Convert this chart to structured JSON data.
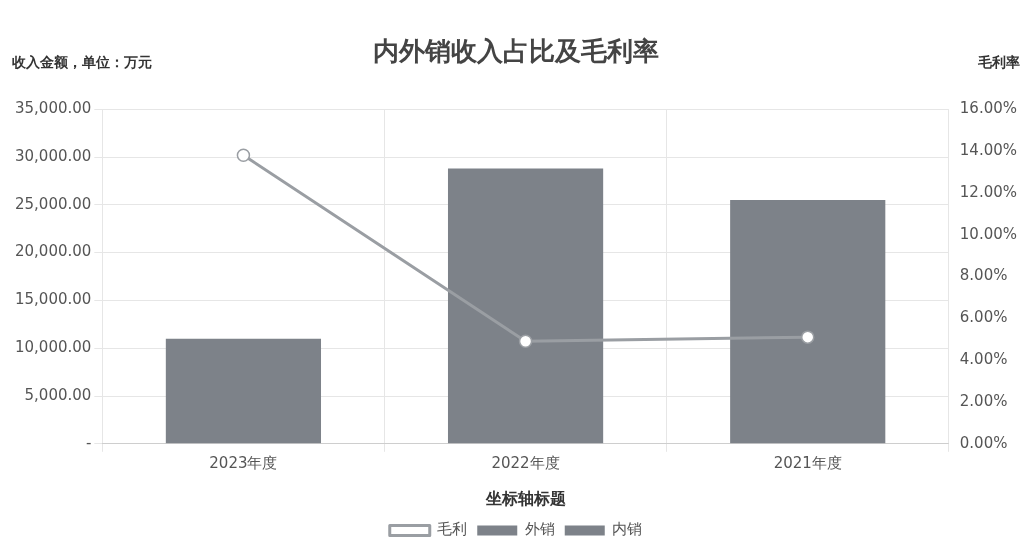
{
  "chart_data": {
    "type": "bar",
    "title": "内外销收入占比及毛利率",
    "ylabel": "收入金额，单位：万元",
    "y2label": "毛利率",
    "xlabel": "坐标轴标题",
    "categories": [
      "2023年度",
      "2022年度",
      "2021年度"
    ],
    "stacked": true,
    "series": [
      {
        "name": "外销",
        "color": "#7d8289",
        "values": [
          null,
          null,
          null
        ]
      },
      {
        "name": "内销",
        "color": "#7d8289",
        "values": [
          11000,
          28800,
          25500
        ]
      },
      {
        "name": "毛利",
        "type": "line",
        "axis": "y2",
        "color": "#9a9ea3",
        "values": [
          13.8,
          4.9,
          5.1
        ]
      }
    ],
    "ylim": [
      0,
      35000
    ],
    "yticks": [
      {
        "value": 0,
        "label": "-"
      },
      {
        "value": 5000,
        "label": "5,000.00"
      },
      {
        "value": 10000,
        "label": "10,000.00"
      },
      {
        "value": 15000,
        "label": "15,000.00"
      },
      {
        "value": 20000,
        "label": "20,000.00"
      },
      {
        "value": 25000,
        "label": "25,000.00"
      },
      {
        "value": 30000,
        "label": "30,000.00"
      },
      {
        "value": 35000,
        "label": "35,000.00"
      }
    ],
    "y2lim": [
      0,
      16
    ],
    "y2ticks": [
      {
        "value": 0,
        "label": "0.00%"
      },
      {
        "value": 2,
        "label": "2.00%"
      },
      {
        "value": 4,
        "label": "4.00%"
      },
      {
        "value": 6,
        "label": "6.00%"
      },
      {
        "value": 8,
        "label": "8.00%"
      },
      {
        "value": 10,
        "label": "10.00%"
      },
      {
        "value": 12,
        "label": "12.00%"
      },
      {
        "value": 14,
        "label": "14.00%"
      },
      {
        "value": 16,
        "label": "16.00%"
      }
    ],
    "grid": true,
    "legend": "bottom",
    "marker": "circle"
  }
}
